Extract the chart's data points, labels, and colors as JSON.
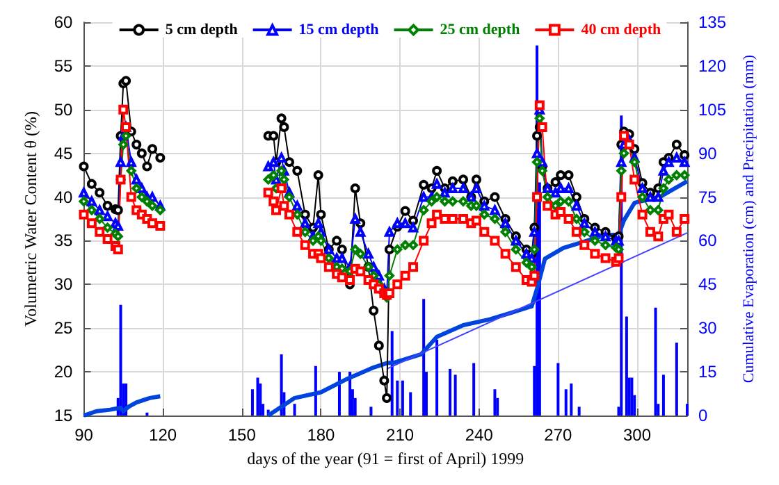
{
  "chart_data": {
    "type": "line",
    "xlabel": "days of the year (91 = first of April) 1999",
    "ylabel": "Volumetric Water Content θ (%)",
    "y2label": "Cumulative Evaporation (cm) and Precipitation (mm)",
    "xlim": [
      90,
      319
    ],
    "xticks": [
      90,
      120,
      150,
      180,
      210,
      240,
      270,
      300
    ],
    "ylim": [
      15,
      60
    ],
    "yticks": [
      15,
      20,
      25,
      30,
      35,
      40,
      45,
      50,
      55,
      60
    ],
    "y2lim": [
      0,
      135
    ],
    "y2ticks": [
      0,
      15,
      30,
      45,
      60,
      75,
      90,
      105,
      120,
      135
    ],
    "grid": true,
    "legend": "top",
    "line_style": "solid",
    "x": [
      90,
      93,
      96,
      99,
      102,
      103,
      104,
      105,
      106,
      108,
      110,
      112,
      114,
      116,
      119,
      120,
      160,
      162,
      163,
      165,
      166,
      168,
      171,
      174,
      177,
      179,
      180,
      183,
      186,
      188,
      191,
      193,
      195,
      198,
      200,
      202,
      204,
      205,
      206,
      209,
      212,
      215,
      219,
      222,
      224,
      227,
      230,
      234,
      237,
      239,
      242,
      246,
      250,
      254,
      258,
      260,
      261,
      262,
      263,
      264,
      266,
      269,
      271,
      274,
      277,
      280,
      284,
      288,
      292,
      293,
      294,
      295,
      297,
      299,
      302,
      305,
      308,
      310,
      312,
      315,
      318
    ],
    "series": [
      {
        "name": "5 cm depth",
        "color": "#000000",
        "marker": "circle",
        "values": [
          43.5,
          41.5,
          40.5,
          39,
          38.6,
          38.5,
          47,
          53,
          53.3,
          47.5,
          46,
          45,
          43.5,
          45.5,
          44.5,
          null,
          47,
          47,
          44,
          49,
          48,
          44,
          43,
          38,
          36.5,
          42.5,
          38,
          34,
          35,
          34,
          30,
          41,
          37,
          32,
          27,
          23,
          19,
          17,
          34,
          36.6,
          38.4,
          37.3,
          41.4,
          41,
          43,
          41,
          41.8,
          42,
          40,
          42,
          39.5,
          40,
          37.5,
          35.5,
          34,
          33.5,
          36.5,
          47,
          48,
          43.5,
          41,
          41.7,
          42.5,
          42.5,
          40,
          37.5,
          36.5,
          36,
          35.3,
          35.5,
          46,
          47.5,
          47.2,
          45.5,
          41.6,
          40.5,
          41,
          44,
          44.5,
          46,
          44.8
        ]
      },
      {
        "name": "15 cm depth",
        "color": "#0000ff",
        "marker": "triangle",
        "values": [
          40.5,
          39.5,
          38.5,
          37.8,
          37,
          36.7,
          44,
          47,
          48,
          44,
          42,
          41,
          40,
          40,
          39,
          null,
          43.5,
          44,
          42,
          44.5,
          43,
          40.5,
          39,
          37,
          35.5,
          37,
          36,
          34,
          33,
          33,
          32,
          37.5,
          36,
          33.5,
          32,
          31,
          29.5,
          29,
          36,
          37,
          37,
          36.5,
          40,
          40,
          41.5,
          40.5,
          41,
          41,
          40,
          41,
          39,
          38.5,
          37,
          35,
          33.5,
          33,
          36,
          45,
          50,
          44,
          41,
          40.5,
          41,
          41,
          39,
          37,
          36,
          35.5,
          35,
          35,
          44,
          46,
          46.5,
          44.5,
          41,
          40,
          40,
          43,
          44,
          44.5,
          44
        ]
      },
      {
        "name": "25 cm depth",
        "color": "#008000",
        "marker": "diamond",
        "values": [
          39.5,
          38.5,
          37.5,
          36.5,
          35.8,
          35.5,
          42,
          46,
          47,
          43,
          41,
          40,
          39.5,
          39,
          38.5,
          null,
          42,
          42.5,
          41,
          43,
          42,
          40,
          38,
          36,
          35,
          35.5,
          35,
          33,
          32,
          31.8,
          31.5,
          34,
          33.5,
          32,
          31,
          30,
          29,
          28.5,
          31,
          34,
          34.5,
          34.5,
          38.5,
          39.5,
          40,
          39.5,
          39.5,
          39.5,
          39,
          39,
          38,
          37.5,
          36,
          34,
          32.5,
          32,
          34,
          44,
          49,
          43,
          40,
          39,
          39.5,
          39.5,
          37.5,
          36,
          35,
          34.5,
          34.2,
          34,
          43,
          45,
          46,
          44,
          40,
          38.5,
          38.5,
          41,
          42,
          42.5,
          42.5
        ]
      },
      {
        "name": "40 cm depth",
        "color": "#ff0000",
        "marker": "square",
        "values": [
          38,
          37,
          36,
          35.2,
          34.4,
          34,
          42,
          50,
          48,
          40,
          38.5,
          38,
          37.5,
          37,
          36.7,
          null,
          40.5,
          39.5,
          38.5,
          41,
          39,
          38,
          36,
          34.5,
          33.5,
          33.5,
          33,
          32,
          31.2,
          30.8,
          30.5,
          31.8,
          31.5,
          30.5,
          30,
          29.5,
          29,
          28.8,
          29,
          30,
          31,
          32,
          35,
          37,
          38,
          37.5,
          37.5,
          37.5,
          37,
          37.3,
          36,
          35,
          33.5,
          32,
          30.5,
          30.3,
          31,
          40,
          50.5,
          48,
          39,
          38,
          38.3,
          37.5,
          36,
          34.5,
          33.5,
          33,
          32.6,
          33,
          40,
          47,
          46,
          42,
          38,
          36,
          35.5,
          37.5,
          38,
          36,
          37.5
        ]
      },
      {
        "type": "bar",
        "axis": "y2",
        "color": "#0000ff",
        "x": [
          103,
          104,
          105,
          106,
          114,
          154,
          156,
          157,
          158,
          160,
          165,
          166,
          170,
          178,
          187,
          191,
          192,
          193,
          199,
          207,
          209,
          211,
          214,
          219,
          220,
          224,
          229,
          231,
          238,
          246,
          247,
          261,
          262,
          263,
          270,
          273,
          275,
          278,
          293,
          294,
          296,
          297,
          298,
          299,
          307,
          308,
          310,
          315,
          319
        ],
        "values": [
          6,
          38,
          11,
          11,
          1,
          9,
          13,
          11,
          4,
          2,
          21,
          8,
          4,
          17,
          15,
          15,
          9,
          6,
          3,
          29,
          12,
          12,
          8,
          40,
          15,
          26,
          16,
          14,
          18,
          9,
          6,
          17,
          127,
          80,
          18,
          9,
          11,
          3,
          3,
          103,
          34,
          13,
          13,
          7,
          37,
          4,
          14,
          25,
          4
        ]
      },
      {
        "axis": "y2",
        "color": "#0044dd",
        "marker": "none",
        "x": [
          90,
          95,
          100,
          104,
          105,
          107,
          110,
          115,
          119,
          120,
          160,
          170,
          180,
          190,
          200,
          205,
          208,
          218,
          224,
          234,
          244,
          252,
          260,
          262,
          265,
          272,
          280,
          288,
          293,
          295,
          299,
          309,
          319
        ],
        "values": [
          0,
          1.5,
          2,
          2.7,
          1.5,
          3,
          4.5,
          6,
          6.6,
          null,
          0,
          6,
          8,
          12.6,
          16.5,
          18,
          18.2,
          21,
          27,
          31,
          33,
          35.2,
          37.5,
          43.5,
          53.8,
          57.5,
          59.7,
          62,
          62,
          67,
          73,
          75.2,
          80.4
        ]
      },
      {
        "axis": "y2",
        "color": "#4444ff",
        "marker": "none",
        "x": [
          205,
          319
        ],
        "values": [
          16,
          62.7
        ]
      }
    ]
  }
}
